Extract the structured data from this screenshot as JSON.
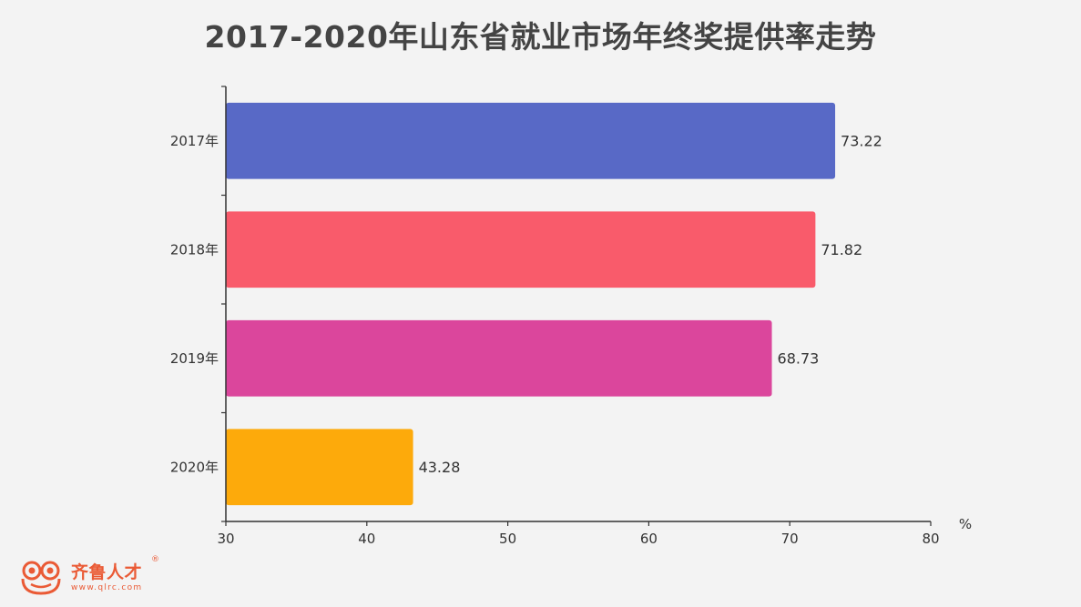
{
  "chart_data": {
    "type": "bar",
    "orientation": "horizontal",
    "title": "2017-2020年山东省就业市场年终奖提供率走势",
    "categories": [
      "2017年",
      "2018年",
      "2019年",
      "2020年"
    ],
    "values": [
      73.22,
      71.82,
      68.73,
      43.28
    ],
    "colors": [
      "#5869c6",
      "#f95b6b",
      "#db469c",
      "#fdaa0b"
    ],
    "xlim": [
      30,
      80
    ],
    "xticks": [
      30,
      40,
      50,
      60,
      70,
      80
    ],
    "unit": "%",
    "grid": false,
    "legend": "none"
  },
  "logo": {
    "name": "齐鲁人才",
    "registered": "®",
    "url": "www.qlrc.com",
    "color": "#ea5a35"
  }
}
